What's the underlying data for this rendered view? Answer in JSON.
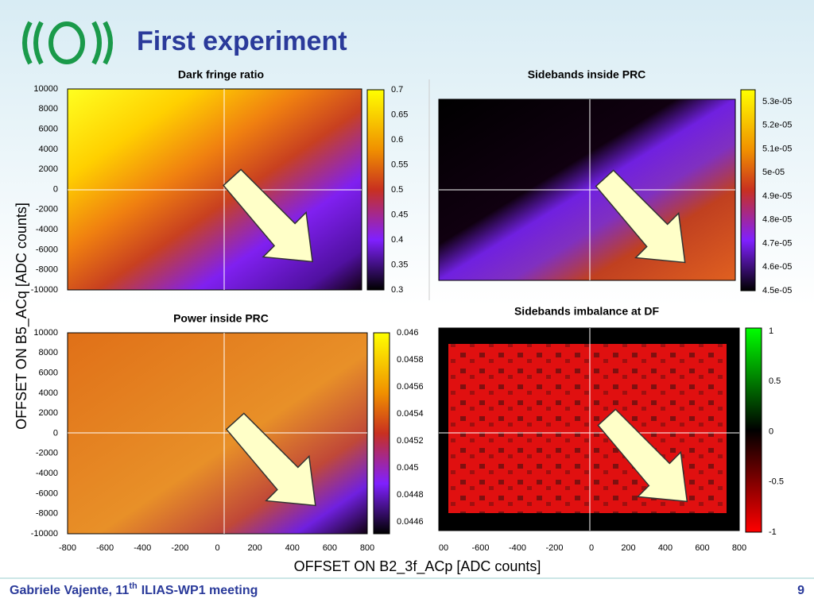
{
  "header": {
    "title": "First experiment"
  },
  "y_axis_label": "OFFSET ON B5_ACq [ADC counts]",
  "x_axis_label": "OFFSET ON B2_3f_ACp [ADC counts]",
  "panels": [
    {
      "title": "Dark fringe ratio",
      "yticks": [
        "10000",
        "8000",
        "6000",
        "4000",
        "2000",
        "0",
        "-2000",
        "-4000",
        "-6000",
        "-8000",
        "-10000"
      ],
      "colorbar_ticks": [
        "0.7",
        "0.65",
        "0.6",
        "0.55",
        "0.5",
        "0.45",
        "0.4",
        "0.35",
        "0.3"
      ]
    },
    {
      "title": "Sidebands inside PRC",
      "colorbar_ticks": [
        "5.3e-05",
        "5.2e-05",
        "5.1e-05",
        "5e-05",
        "4.9e-05",
        "4.8e-05",
        "4.7e-05",
        "4.6e-05",
        "4.5e-05"
      ]
    },
    {
      "title": "Power inside PRC",
      "yticks": [
        "10000",
        "8000",
        "6000",
        "4000",
        "2000",
        "0",
        "-2000",
        "-4000",
        "-6000",
        "-8000",
        "-10000"
      ],
      "colorbar_ticks": [
        "0.046",
        "0.0458",
        "0.0456",
        "0.0454",
        "0.0452",
        "0.045",
        "0.0448",
        "0.0446"
      ],
      "xticks": [
        "-800",
        "-600",
        "-400",
        "-200",
        "0",
        "200",
        "400",
        "600",
        "800"
      ]
    },
    {
      "title": "Sidebands imbalance at DF",
      "colorbar_ticks": [
        "1",
        "0.5",
        "0",
        "-0.5",
        "-1"
      ],
      "xticks": [
        "00",
        "-600",
        "-400",
        "-200",
        "0",
        "200",
        "400",
        "600",
        "800"
      ]
    }
  ],
  "footer": {
    "author": "Gabriele Vajente, 11",
    "superscript": "th",
    "event": "ILIAS-WP1 meeting",
    "page": "9"
  }
}
